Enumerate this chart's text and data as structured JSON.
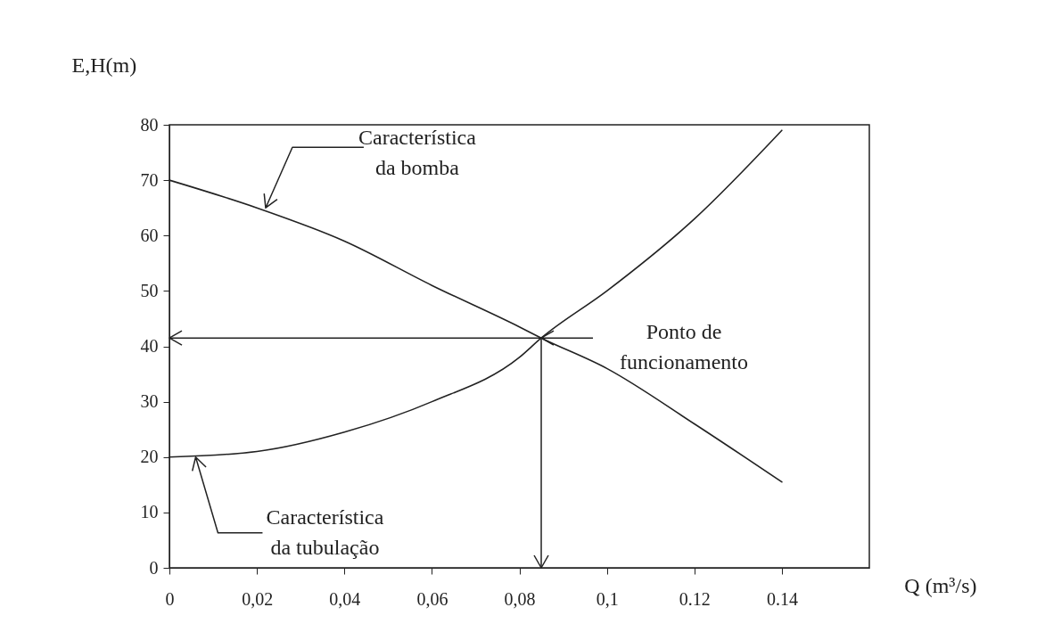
{
  "chart_data": {
    "type": "line",
    "xlabel": "Q (m³/s)",
    "ylabel": "E,H(m)",
    "series": [
      {
        "color": "#222222",
        "x": [
          0,
          0.02,
          0.04,
          0.06,
          0.08,
          0.085,
          0.1,
          0.12,
          0.14
        ],
        "values": [
          70,
          65,
          59,
          51,
          43.5,
          41.5,
          36,
          26,
          15.5
        ]
      },
      {
        "color": "#222222",
        "x": [
          0,
          0.02,
          0.04,
          0.06,
          0.08,
          0.085,
          0.1,
          0.12,
          0.14
        ],
        "values": [
          20,
          21,
          24.5,
          30,
          38,
          41.5,
          50,
          63,
          79
        ]
      }
    ],
    "xlim": [
      0,
      0.16
    ],
    "ylim": [
      0,
      80
    ],
    "xticks": [
      0,
      {
        "value": 0.02,
        "label": "0,02"
      },
      {
        "value": 0.04,
        "label": "0,04"
      },
      {
        "value": 0.06,
        "label": "0,06"
      },
      {
        "value": 0.08,
        "label": "0,08"
      },
      {
        "value": 0.1,
        "label": "0,1"
      },
      {
        "value": 0.12,
        "label": "0.12"
      },
      {
        "value": 0.14,
        "label": "0.14"
      }
    ],
    "yticks": [
      0,
      10,
      20,
      30,
      40,
      50,
      60,
      70,
      80
    ],
    "grid": false,
    "legend": false,
    "marker": "none",
    "line_style": "solid",
    "ref_lines": [
      {
        "axis": "y",
        "value": 41.5,
        "color": "#222222"
      },
      {
        "axis": "x",
        "value": 0.085,
        "color": "#222222"
      }
    ],
    "annotations": [
      {
        "text": "Característica da bomba",
        "x": 0.022,
        "y": 65
      },
      {
        "text": "Característica da tubulação",
        "x": 0.006,
        "y": 20
      },
      {
        "text": "Ponto de funcionamento",
        "x": 0.085,
        "y": 41.5
      }
    ]
  }
}
